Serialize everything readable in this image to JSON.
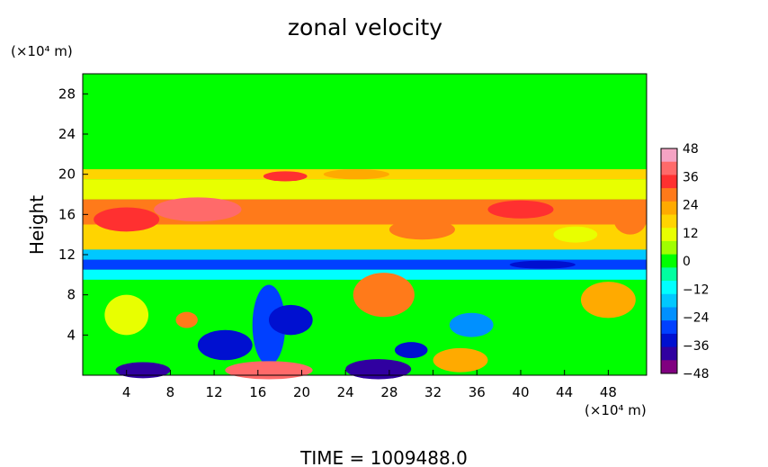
{
  "chart_data": {
    "type": "heatmap",
    "title": "zonal velocity",
    "ylabel": "Height",
    "y_unit_label": "(×10⁴ m)",
    "x_unit_label": "(×10⁴ m)",
    "footer": "TIME  =  1009488.0",
    "xlim": [
      0,
      51.5
    ],
    "ylim": [
      0,
      30
    ],
    "x_ticks": [
      4,
      8,
      12,
      16,
      20,
      24,
      28,
      32,
      36,
      40,
      44,
      48
    ],
    "y_ticks": [
      4,
      8,
      12,
      16,
      20,
      24,
      28
    ],
    "colorbar": {
      "range": [
        -48,
        48
      ],
      "ticks": [
        48,
        36,
        24,
        12,
        0,
        -12,
        -24,
        -36,
        -48
      ],
      "colors": [
        "#f5a3c4",
        "#ff6a6a",
        "#ff3030",
        "#ff7a1a",
        "#ffaa00",
        "#ffd400",
        "#e8ff00",
        "#a0ff00",
        "#00ff00",
        "#00ffa0",
        "#00ffff",
        "#00c8ff",
        "#0090ff",
        "#0040ff",
        "#0010d0",
        "#3000a0",
        "#800080"
      ]
    },
    "bands": [
      {
        "y": [
          20.5,
          30
        ],
        "value": 0
      },
      {
        "y": [
          19.5,
          20.5
        ],
        "value": 20
      },
      {
        "y": [
          17.5,
          19.5
        ],
        "value": 10
      },
      {
        "y": [
          15,
          17.5
        ],
        "value": 28
      },
      {
        "y": [
          12.5,
          15
        ],
        "value": 20
      },
      {
        "y": [
          11.5,
          12.5
        ],
        "value": -15
      },
      {
        "y": [
          10.5,
          11.5
        ],
        "value": -30
      },
      {
        "y": [
          9.5,
          10.5
        ],
        "value": -12
      },
      {
        "y": [
          0,
          9.5
        ],
        "value": 2
      }
    ],
    "blobs": [
      {
        "x": 10.5,
        "y": 16.5,
        "rx": 4,
        "ry": 1.2,
        "value": 45
      },
      {
        "x": 4,
        "y": 15.5,
        "rx": 3,
        "ry": 1.2,
        "value": 34
      },
      {
        "x": 40,
        "y": 16.5,
        "rx": 3,
        "ry": 0.9,
        "value": 34
      },
      {
        "x": 50,
        "y": 15.5,
        "rx": 1.5,
        "ry": 1.5,
        "value": 30
      },
      {
        "x": 18.5,
        "y": 19.8,
        "rx": 2,
        "ry": 0.5,
        "value": 36
      },
      {
        "x": 27.5,
        "y": 8,
        "rx": 2.8,
        "ry": 2.2,
        "value": 28
      },
      {
        "x": 48,
        "y": 7.5,
        "rx": 2.5,
        "ry": 1.8,
        "value": 26
      },
      {
        "x": 4,
        "y": 6,
        "rx": 2,
        "ry": 2,
        "value": 14
      },
      {
        "x": 17,
        "y": 5,
        "rx": 1.5,
        "ry": 4,
        "value": -30
      },
      {
        "x": 13,
        "y": 3,
        "rx": 2.5,
        "ry": 1.5,
        "value": -38
      },
      {
        "x": 19,
        "y": 5.5,
        "rx": 2,
        "ry": 1.5,
        "value": -34
      },
      {
        "x": 35.5,
        "y": 5,
        "rx": 2,
        "ry": 1.2,
        "value": -26
      },
      {
        "x": 5.5,
        "y": 0.5,
        "rx": 2.5,
        "ry": 0.8,
        "value": -42
      },
      {
        "x": 17,
        "y": 0.5,
        "rx": 4,
        "ry": 0.9,
        "value": 40
      },
      {
        "x": 27,
        "y": 0.6,
        "rx": 3,
        "ry": 1,
        "value": -40
      },
      {
        "x": 34.5,
        "y": 1.5,
        "rx": 2.5,
        "ry": 1.2,
        "value": 26
      },
      {
        "x": 30,
        "y": 2.5,
        "rx": 1.5,
        "ry": 0.8,
        "value": -36
      },
      {
        "x": 9.5,
        "y": 5.5,
        "rx": 1,
        "ry": 0.8,
        "value": 30
      },
      {
        "x": 42,
        "y": 11,
        "rx": 3,
        "ry": 0.4,
        "value": -36
      },
      {
        "x": 25,
        "y": 20,
        "rx": 3,
        "ry": 0.5,
        "value": 24
      },
      {
        "x": 31,
        "y": 14.5,
        "rx": 3,
        "ry": 1,
        "value": 30
      },
      {
        "x": 45,
        "y": 14,
        "rx": 2,
        "ry": 0.8,
        "value": 12
      }
    ]
  }
}
